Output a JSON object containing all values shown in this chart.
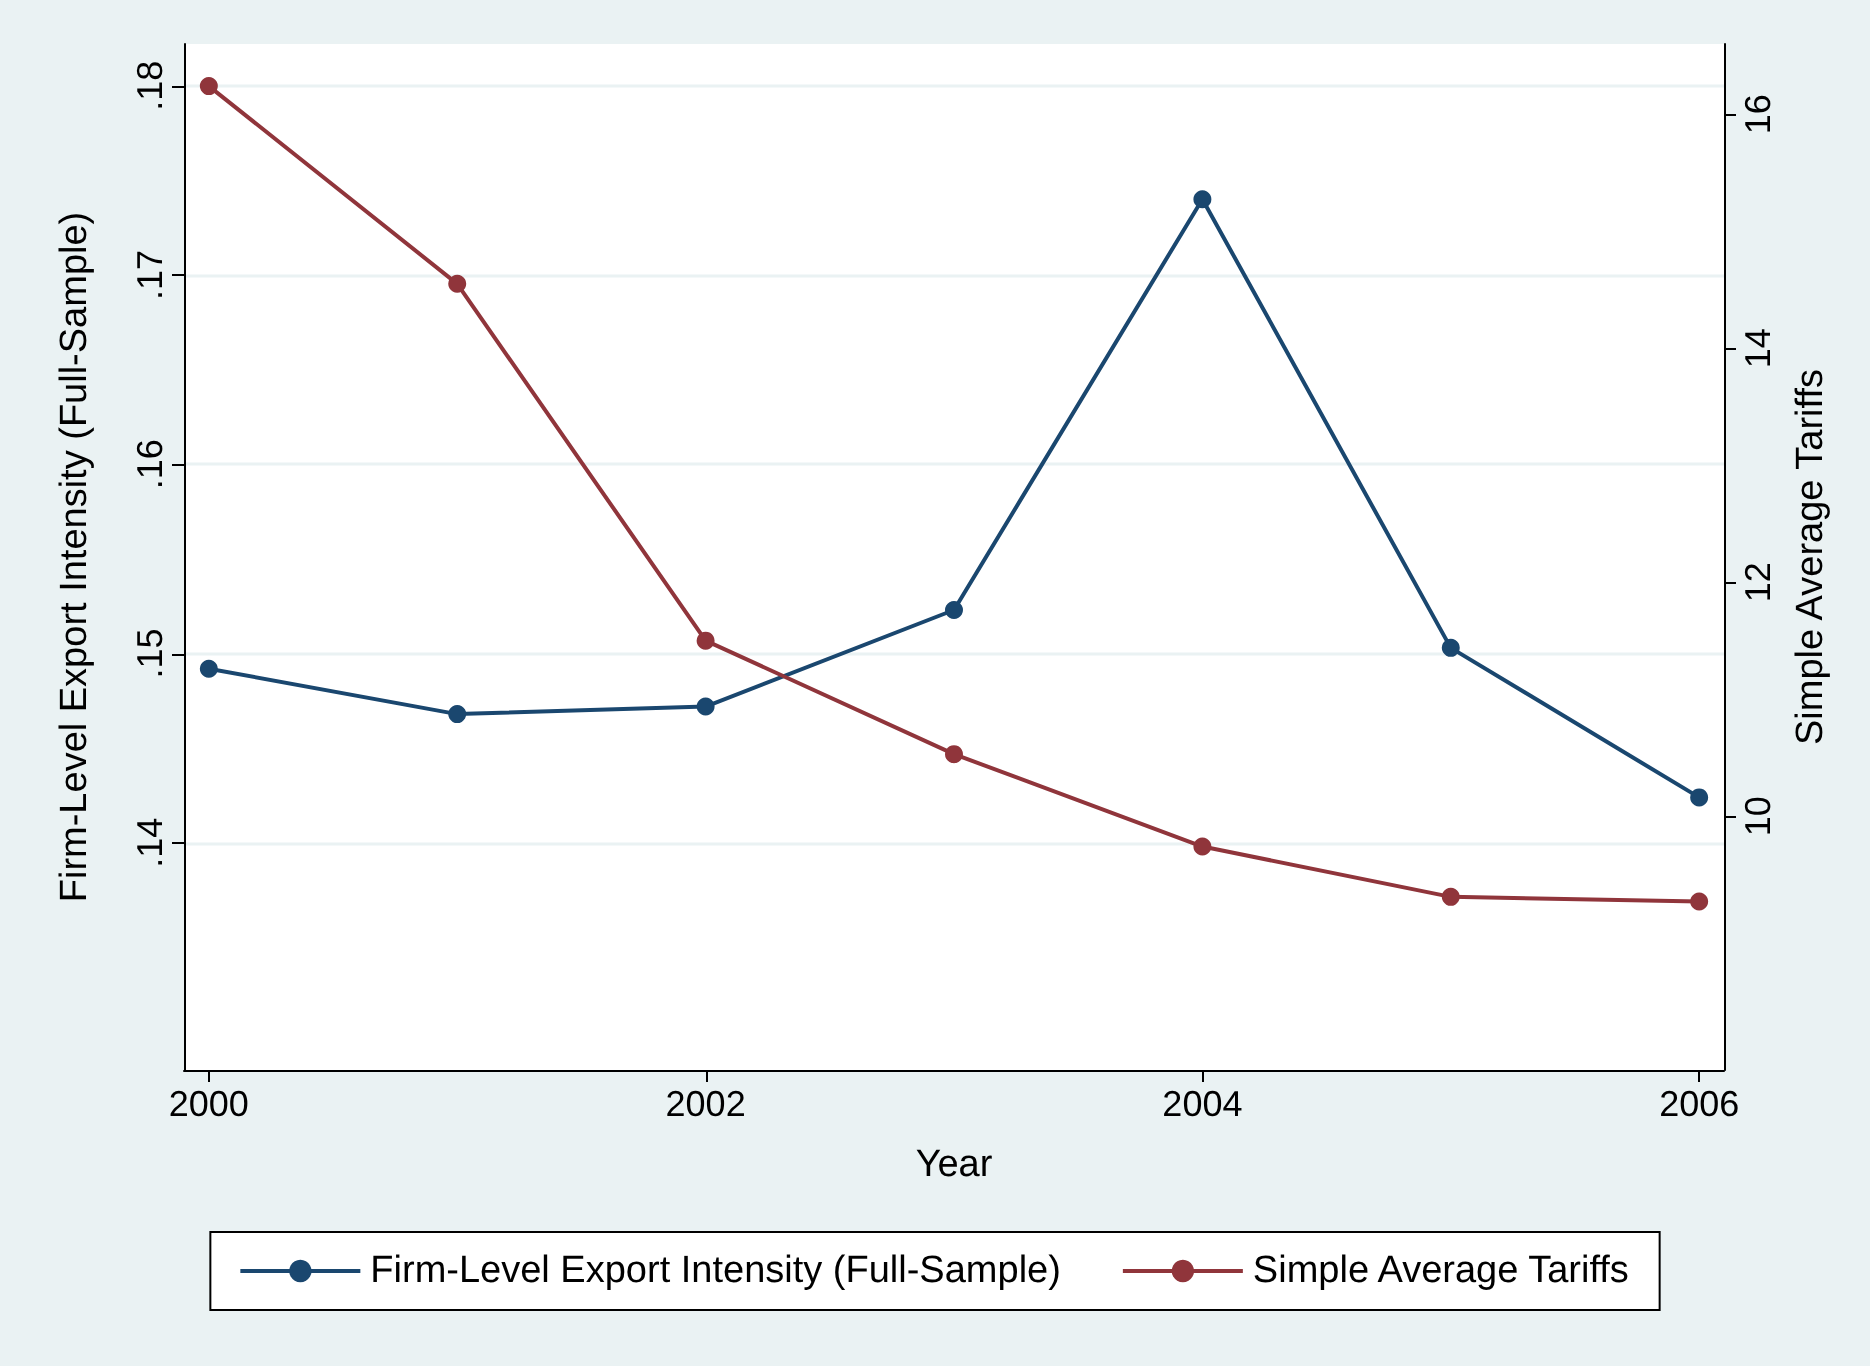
{
  "chart_data": {
    "type": "line",
    "xlabel": "Year",
    "ylabel": "Firm-Level Export Intensity (Full-Sample)",
    "y2label": "Simple Average Tariffs",
    "x": [
      2000,
      2001,
      2002,
      2003,
      2004,
      2005,
      2006
    ],
    "series": [
      {
        "name": "Firm-Level Export Intensity (Full-Sample)",
        "color": "#1a476f",
        "values": [
          0.1492,
          0.1468,
          0.1472,
          0.1523,
          0.174,
          0.1503,
          0.1424
        ]
      },
      {
        "name": "Simple Average Tariffs",
        "color": "#90353b",
        "axis": "y2",
        "values": [
          16.24,
          14.55,
          11.5,
          10.53,
          9.74,
          9.31,
          9.27
        ]
      }
    ],
    "xlim": [
      1999.9,
      2006.1
    ],
    "xticks": [
      2000,
      2002,
      2004,
      2006
    ],
    "ylim": [
      0.128,
      0.1822
    ],
    "yticks": [
      {
        "value": 0.14,
        "label": ".14"
      },
      {
        "value": 0.15,
        "label": ".15"
      },
      {
        "value": 0.16,
        "label": ".16"
      },
      {
        "value": 0.17,
        "label": ".17"
      },
      {
        "value": 0.18,
        "label": ".18"
      }
    ],
    "y2lim": [
      7.83,
      16.6
    ],
    "y2ticks": [
      10,
      12,
      14,
      16
    ],
    "grid": "y",
    "legend": "bottom",
    "marker": "circle",
    "line_style": "solid"
  }
}
